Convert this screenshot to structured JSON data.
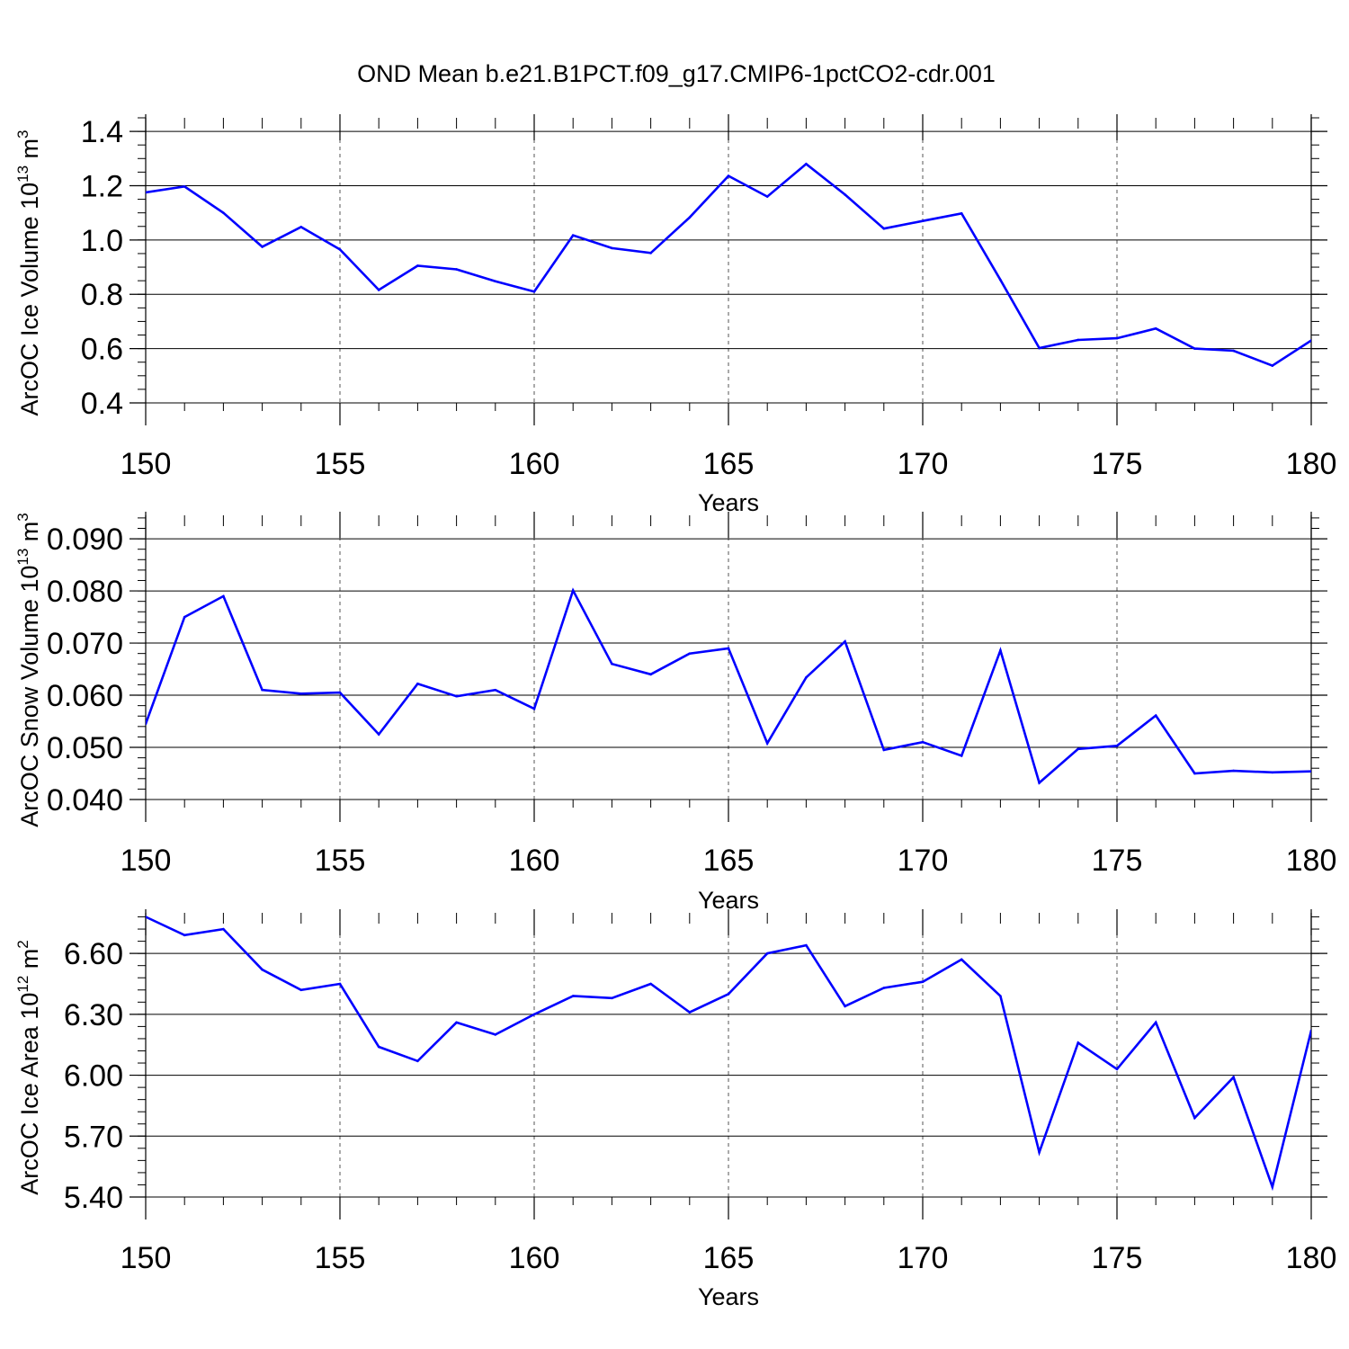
{
  "title": "OND Mean b.e21.B1PCT.f09_g17.CMIP6-1pctCO2-cdr.001",
  "colors": {
    "line": "#0000ff",
    "axis": "#000000",
    "grid": "#555555",
    "background": "#ffffff"
  },
  "chart_data": [
    {
      "type": "line",
      "title": "OND Mean b.e21.B1PCT.f09_g17.CMIP6-1pctCO2-cdr.001",
      "xlabel": "Years",
      "ylabel_main": "ArcOC Ice Volume 10",
      "ylabel_exp": "13",
      "ylabel_unit": " m",
      "ylabel_unit_exp": "3",
      "xlim": [
        150,
        180
      ],
      "ylim": [
        0.4,
        1.45
      ],
      "xticks": [
        150,
        155,
        160,
        165,
        170,
        175,
        180
      ],
      "xtick_labels": [
        "150",
        "155",
        "160",
        "165",
        "170",
        "175",
        "180"
      ],
      "yticks": [
        0.4,
        0.6,
        0.8,
        1.0,
        1.2,
        1.4
      ],
      "ytick_labels": [
        "0.4",
        "0.6",
        "0.8",
        "1.0",
        "1.2",
        "1.4"
      ],
      "yminor_step": 0.05,
      "grid": "vertical dashed at major x ticks",
      "x": [
        150,
        151,
        152,
        153,
        154,
        155,
        156,
        157,
        158,
        159,
        160,
        161,
        162,
        163,
        164,
        165,
        166,
        167,
        168,
        169,
        170,
        171,
        172,
        173,
        174,
        175,
        176,
        177,
        178,
        179,
        180
      ],
      "series": [
        {
          "name": "Ice Volume",
          "values": [
            1.175,
            1.197,
            1.1,
            0.975,
            1.048,
            0.965,
            0.816,
            0.905,
            0.892,
            0.848,
            0.81,
            1.017,
            0.97,
            0.952,
            1.083,
            1.236,
            1.16,
            1.28,
            1.167,
            1.042,
            1.07,
            1.098,
            0.853,
            0.602,
            0.632,
            0.638,
            0.674,
            0.6,
            0.592,
            0.537,
            0.63
          ]
        }
      ]
    },
    {
      "type": "line",
      "xlabel": "Years",
      "ylabel_main": "ArcOC Snow Volume 10",
      "ylabel_exp": "13",
      "ylabel_unit": " m",
      "ylabel_unit_exp": "3",
      "xlim": [
        150,
        180
      ],
      "ylim": [
        0.04,
        0.0945
      ],
      "xticks": [
        150,
        155,
        160,
        165,
        170,
        175,
        180
      ],
      "xtick_labels": [
        "150",
        "155",
        "160",
        "165",
        "170",
        "175",
        "180"
      ],
      "yticks": [
        0.04,
        0.05,
        0.06,
        0.07,
        0.08,
        0.09
      ],
      "ytick_labels": [
        "0.040",
        "0.050",
        "0.060",
        "0.070",
        "0.080",
        "0.090"
      ],
      "yminor_step": 0.002,
      "grid": "vertical dashed at major x ticks",
      "x": [
        150,
        151,
        152,
        153,
        154,
        155,
        156,
        157,
        158,
        159,
        160,
        161,
        162,
        163,
        164,
        165,
        166,
        167,
        168,
        169,
        170,
        171,
        172,
        173,
        174,
        175,
        176,
        177,
        178,
        179,
        180
      ],
      "series": [
        {
          "name": "Snow Volume",
          "values": [
            0.0545,
            0.075,
            0.079,
            0.061,
            0.0603,
            0.0605,
            0.0525,
            0.0622,
            0.0598,
            0.061,
            0.0574,
            0.0801,
            0.066,
            0.064,
            0.068,
            0.069,
            0.0508,
            0.0634,
            0.0703,
            0.0495,
            0.051,
            0.0484,
            0.0686,
            0.0432,
            0.0497,
            0.0503,
            0.0561,
            0.045,
            0.0455,
            0.0452,
            0.0454
          ]
        }
      ]
    },
    {
      "type": "line",
      "xlabel": "Years",
      "ylabel_main": "ArcOC Ice Area 10",
      "ylabel_exp": "12",
      "ylabel_unit": " m",
      "ylabel_unit_exp": "2",
      "xlim": [
        150,
        180
      ],
      "ylim": [
        5.4,
        6.8
      ],
      "xticks": [
        150,
        155,
        160,
        165,
        170,
        175,
        180
      ],
      "xtick_labels": [
        "150",
        "155",
        "160",
        "165",
        "170",
        "175",
        "180"
      ],
      "yticks": [
        5.4,
        5.7,
        6.0,
        6.3,
        6.6
      ],
      "ytick_labels": [
        "5.40",
        "5.70",
        "6.00",
        "6.30",
        "6.60"
      ],
      "yminor_step": 0.06,
      "grid": "vertical dashed at major x ticks",
      "x": [
        150,
        151,
        152,
        153,
        154,
        155,
        156,
        157,
        158,
        159,
        160,
        161,
        162,
        163,
        164,
        165,
        166,
        167,
        168,
        169,
        170,
        171,
        172,
        173,
        174,
        175,
        176,
        177,
        178,
        179,
        180
      ],
      "series": [
        {
          "name": "Ice Area",
          "values": [
            6.78,
            6.69,
            6.72,
            6.52,
            6.42,
            6.45,
            6.14,
            6.07,
            6.26,
            6.2,
            6.3,
            6.39,
            6.38,
            6.45,
            6.31,
            6.4,
            6.6,
            6.64,
            6.34,
            6.43,
            6.46,
            6.57,
            6.39,
            5.62,
            6.16,
            6.03,
            6.26,
            5.79,
            5.99,
            5.45,
            6.22
          ]
        }
      ]
    }
  ]
}
